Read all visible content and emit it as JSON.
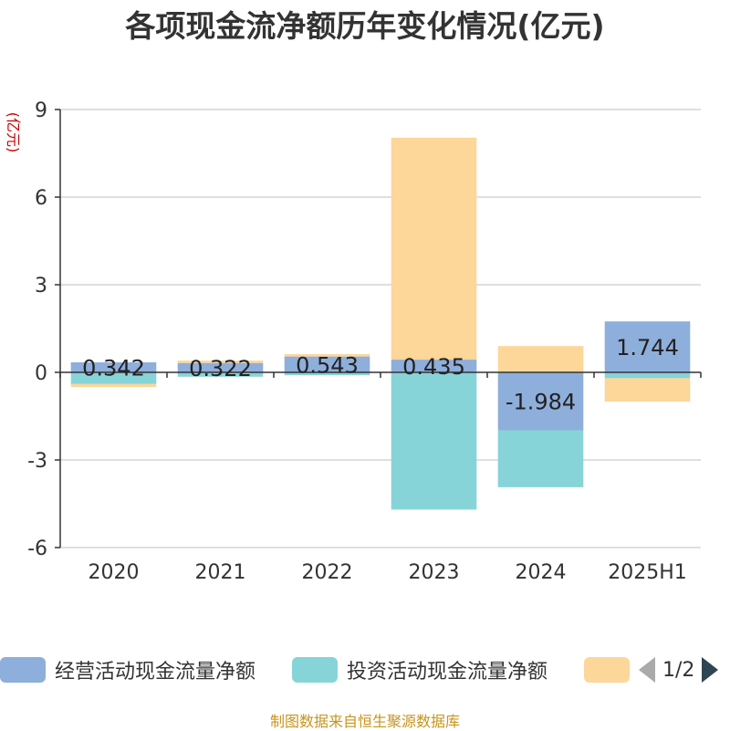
{
  "chart_data": {
    "type": "bar",
    "stacked": true,
    "title": "各项现金流净额历年变化情况(亿元)",
    "ylabel": "(亿元)",
    "categories": [
      "2020",
      "2021",
      "2022",
      "2023",
      "2024",
      "2025H1"
    ],
    "ylim": [
      -6,
      9
    ],
    "yticks": [
      -6,
      -3,
      0,
      3,
      6,
      9
    ],
    "grid": true,
    "legend_position": "bottom",
    "series": [
      {
        "name": "经营活动现金流量净额",
        "color": "#8eaedb",
        "values": [
          0.342,
          0.322,
          0.543,
          0.435,
          -1.984,
          1.744
        ],
        "labels": [
          "0.342",
          "0.322",
          "0.543",
          "0.435",
          "-1.984",
          "1.744"
        ]
      },
      {
        "name": "投资活动现金流量净额",
        "color": "#87d4d8",
        "values": [
          -0.4,
          -0.15,
          -0.1,
          -4.7,
          -1.95,
          -0.2
        ]
      },
      {
        "name": "",
        "color": "#fdd69a",
        "values": [
          -0.1,
          0.08,
          0.08,
          7.6,
          0.9,
          -0.8
        ]
      }
    ]
  },
  "legend": {
    "pager": "1/2"
  },
  "source": "制图数据来自恒生聚源数据库"
}
